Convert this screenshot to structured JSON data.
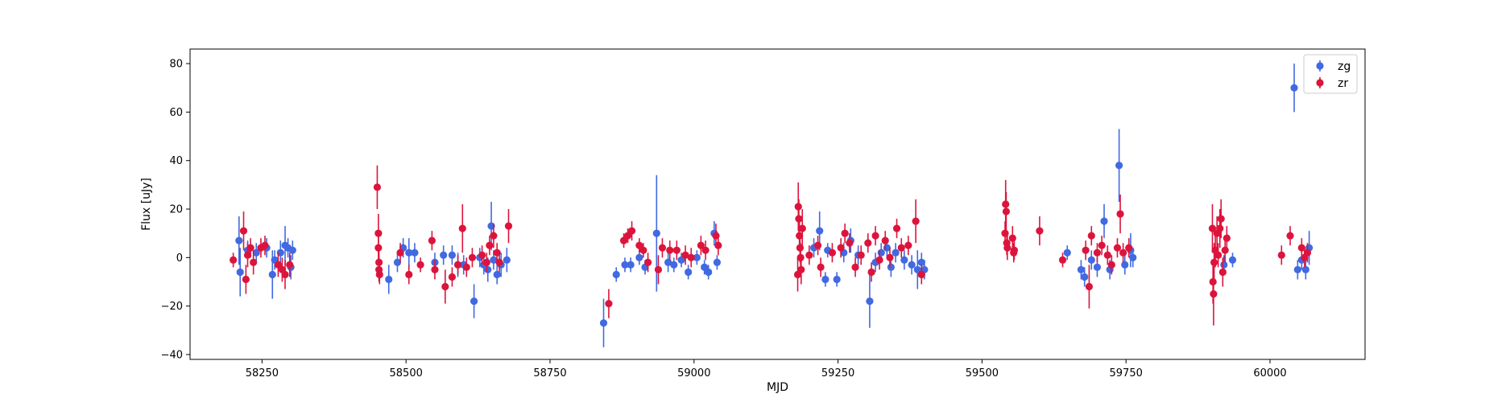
{
  "chart_data": {
    "type": "scatter",
    "xlabel": "MJD",
    "ylabel": "Flux [uJy]",
    "xlim": [
      58125,
      60165
    ],
    "ylim": [
      -42,
      86
    ],
    "x_ticks": [
      58250,
      58500,
      58750,
      59000,
      59250,
      59500,
      59750,
      60000
    ],
    "y_ticks": [
      -40,
      -20,
      0,
      20,
      40,
      60,
      80
    ],
    "legend": {
      "placement": "top-right",
      "entries": [
        "zg",
        "zr"
      ]
    },
    "series": [
      {
        "name": "zg",
        "color": "#4169e1",
        "points": [
          {
            "x": 58210,
            "y": 7,
            "err": 10
          },
          {
            "x": 58212,
            "y": -6,
            "err": 10
          },
          {
            "x": 58225,
            "y": 3,
            "err": 4
          },
          {
            "x": 58240,
            "y": 2,
            "err": 4
          },
          {
            "x": 58258,
            "y": 4,
            "err": 4
          },
          {
            "x": 58268,
            "y": -7,
            "err": 10
          },
          {
            "x": 58272,
            "y": -1,
            "err": 4
          },
          {
            "x": 58282,
            "y": 2,
            "err": 5
          },
          {
            "x": 58290,
            "y": 5,
            "err": 8
          },
          {
            "x": 58295,
            "y": 4,
            "err": 4
          },
          {
            "x": 58300,
            "y": -4,
            "err": 5
          },
          {
            "x": 58303,
            "y": 3,
            "err": 4
          },
          {
            "x": 58470,
            "y": -9,
            "err": 6
          },
          {
            "x": 58485,
            "y": -2,
            "err": 4
          },
          {
            "x": 58495,
            "y": 4,
            "err": 4
          },
          {
            "x": 58505,
            "y": 2,
            "err": 6
          },
          {
            "x": 58515,
            "y": 2,
            "err": 4
          },
          {
            "x": 58550,
            "y": -2,
            "err": 4
          },
          {
            "x": 58565,
            "y": 1,
            "err": 4
          },
          {
            "x": 58580,
            "y": 1,
            "err": 4
          },
          {
            "x": 58590,
            "y": -3,
            "err": 5
          },
          {
            "x": 58600,
            "y": -3,
            "err": 4
          },
          {
            "x": 58618,
            "y": -18,
            "err": 7
          },
          {
            "x": 58628,
            "y": 0,
            "err": 4
          },
          {
            "x": 58635,
            "y": -3,
            "err": 4
          },
          {
            "x": 58642,
            "y": -5,
            "err": 5
          },
          {
            "x": 58648,
            "y": 13,
            "err": 10
          },
          {
            "x": 58652,
            "y": -1,
            "err": 4
          },
          {
            "x": 58658,
            "y": -7,
            "err": 4
          },
          {
            "x": 58665,
            "y": -3,
            "err": 5
          },
          {
            "x": 58675,
            "y": -1,
            "err": 5
          },
          {
            "x": 58843,
            "y": -27,
            "err": 10
          },
          {
            "x": 58865,
            "y": -7,
            "err": 3
          },
          {
            "x": 58880,
            "y": -3,
            "err": 3
          },
          {
            "x": 58890,
            "y": -3,
            "err": 3
          },
          {
            "x": 58905,
            "y": 0,
            "err": 3
          },
          {
            "x": 58915,
            "y": -4,
            "err": 3
          },
          {
            "x": 58935,
            "y": 10,
            "err": 24
          },
          {
            "x": 58955,
            "y": -2,
            "err": 4
          },
          {
            "x": 58965,
            "y": -3,
            "err": 3
          },
          {
            "x": 58978,
            "y": -1,
            "err": 3
          },
          {
            "x": 58990,
            "y": -6,
            "err": 3
          },
          {
            "x": 59005,
            "y": 0,
            "err": 3
          },
          {
            "x": 59018,
            "y": -4,
            "err": 3
          },
          {
            "x": 59025,
            "y": -6,
            "err": 3
          },
          {
            "x": 59035,
            "y": 10,
            "err": 5
          },
          {
            "x": 59040,
            "y": -2,
            "err": 3
          },
          {
            "x": 59208,
            "y": 4,
            "err": 4
          },
          {
            "x": 59218,
            "y": 11,
            "err": 8
          },
          {
            "x": 59228,
            "y": -9,
            "err": 3
          },
          {
            "x": 59232,
            "y": 3,
            "err": 3
          },
          {
            "x": 59248,
            "y": -9,
            "err": 3
          },
          {
            "x": 59260,
            "y": 2,
            "err": 4
          },
          {
            "x": 59272,
            "y": 7,
            "err": 5
          },
          {
            "x": 59285,
            "y": 1,
            "err": 4
          },
          {
            "x": 59305,
            "y": -18,
            "err": 11
          },
          {
            "x": 59315,
            "y": -2,
            "err": 4
          },
          {
            "x": 59325,
            "y": 2,
            "err": 4
          },
          {
            "x": 59335,
            "y": 4,
            "err": 4
          },
          {
            "x": 59342,
            "y": -4,
            "err": 4
          },
          {
            "x": 59350,
            "y": 2,
            "err": 4
          },
          {
            "x": 59365,
            "y": -1,
            "err": 4
          },
          {
            "x": 59378,
            "y": -3,
            "err": 4
          },
          {
            "x": 59388,
            "y": -5,
            "err": 8
          },
          {
            "x": 59395,
            "y": -2,
            "err": 4
          },
          {
            "x": 59400,
            "y": -5,
            "err": 4
          },
          {
            "x": 59648,
            "y": 2,
            "err": 3
          },
          {
            "x": 59672,
            "y": -5,
            "err": 4
          },
          {
            "x": 59678,
            "y": -8,
            "err": 4
          },
          {
            "x": 59690,
            "y": -1,
            "err": 4
          },
          {
            "x": 59700,
            "y": -4,
            "err": 4
          },
          {
            "x": 59712,
            "y": 15,
            "err": 7
          },
          {
            "x": 59722,
            "y": -5,
            "err": 4
          },
          {
            "x": 59738,
            "y": 38,
            "err": 15
          },
          {
            "x": 59748,
            "y": -3,
            "err": 4
          },
          {
            "x": 59758,
            "y": 3,
            "err": 7
          },
          {
            "x": 59762,
            "y": 0,
            "err": 4
          },
          {
            "x": 59920,
            "y": -3,
            "err": 4
          },
          {
            "x": 59935,
            "y": -1,
            "err": 3
          },
          {
            "x": 60042,
            "y": 70,
            "err": 10
          },
          {
            "x": 60048,
            "y": -5,
            "err": 4
          },
          {
            "x": 60055,
            "y": -1,
            "err": 4
          },
          {
            "x": 60062,
            "y": -5,
            "err": 4
          },
          {
            "x": 60068,
            "y": 4,
            "err": 7
          }
        ]
      },
      {
        "name": "zr",
        "color": "#dc143c",
        "points": [
          {
            "x": 58200,
            "y": -1,
            "err": 3
          },
          {
            "x": 58218,
            "y": 11,
            "err": 8
          },
          {
            "x": 58222,
            "y": -9,
            "err": 6
          },
          {
            "x": 58225,
            "y": 1,
            "err": 5
          },
          {
            "x": 58230,
            "y": 4,
            "err": 4
          },
          {
            "x": 58235,
            "y": -2,
            "err": 5
          },
          {
            "x": 58248,
            "y": 4,
            "err": 4
          },
          {
            "x": 58255,
            "y": 5,
            "err": 4
          },
          {
            "x": 58278,
            "y": -3,
            "err": 5
          },
          {
            "x": 58285,
            "y": -5,
            "err": 5
          },
          {
            "x": 58290,
            "y": -7,
            "err": 6
          },
          {
            "x": 58298,
            "y": -3,
            "err": 5
          },
          {
            "x": 58450,
            "y": 29,
            "err": 9
          },
          {
            "x": 58452,
            "y": 10,
            "err": 8
          },
          {
            "x": 58452,
            "y": 4,
            "err": 5
          },
          {
            "x": 58453,
            "y": -2,
            "err": 5
          },
          {
            "x": 58453,
            "y": -5,
            "err": 5
          },
          {
            "x": 58454,
            "y": -7,
            "err": 4
          },
          {
            "x": 58490,
            "y": 2,
            "err": 4
          },
          {
            "x": 58505,
            "y": -7,
            "err": 4
          },
          {
            "x": 58525,
            "y": -3,
            "err": 3
          },
          {
            "x": 58545,
            "y": 7,
            "err": 4
          },
          {
            "x": 58550,
            "y": -5,
            "err": 4
          },
          {
            "x": 58568,
            "y": -12,
            "err": 7
          },
          {
            "x": 58580,
            "y": -8,
            "err": 4
          },
          {
            "x": 58590,
            "y": -3,
            "err": 4
          },
          {
            "x": 58598,
            "y": 12,
            "err": 10
          },
          {
            "x": 58605,
            "y": -4,
            "err": 4
          },
          {
            "x": 58615,
            "y": 0,
            "err": 4
          },
          {
            "x": 58632,
            "y": 1,
            "err": 4
          },
          {
            "x": 58640,
            "y": -2,
            "err": 4
          },
          {
            "x": 58645,
            "y": 5,
            "err": 4
          },
          {
            "x": 58652,
            "y": 9,
            "err": 5
          },
          {
            "x": 58658,
            "y": 2,
            "err": 4
          },
          {
            "x": 58662,
            "y": -2,
            "err": 4
          },
          {
            "x": 58678,
            "y": 13,
            "err": 7
          },
          {
            "x": 58852,
            "y": -19,
            "err": 6
          },
          {
            "x": 58878,
            "y": 7,
            "err": 3
          },
          {
            "x": 58885,
            "y": 9,
            "err": 3
          },
          {
            "x": 58892,
            "y": 11,
            "err": 4
          },
          {
            "x": 58905,
            "y": 5,
            "err": 3
          },
          {
            "x": 58912,
            "y": 3,
            "err": 3
          },
          {
            "x": 58920,
            "y": -2,
            "err": 4
          },
          {
            "x": 58938,
            "y": -5,
            "err": 6
          },
          {
            "x": 58945,
            "y": 4,
            "err": 4
          },
          {
            "x": 58958,
            "y": 3,
            "err": 4
          },
          {
            "x": 58970,
            "y": 3,
            "err": 4
          },
          {
            "x": 58985,
            "y": 1,
            "err": 4
          },
          {
            "x": 58995,
            "y": 0,
            "err": 4
          },
          {
            "x": 59012,
            "y": 5,
            "err": 4
          },
          {
            "x": 59020,
            "y": 3,
            "err": 4
          },
          {
            "x": 59038,
            "y": 9,
            "err": 5
          },
          {
            "x": 59042,
            "y": 5,
            "err": 4
          },
          {
            "x": 59180,
            "y": -7,
            "err": 7
          },
          {
            "x": 59181,
            "y": 21,
            "err": 10
          },
          {
            "x": 59182,
            "y": 16,
            "err": 8
          },
          {
            "x": 59183,
            "y": 9,
            "err": 6
          },
          {
            "x": 59184,
            "y": 4,
            "err": 6
          },
          {
            "x": 59185,
            "y": 0,
            "err": 6
          },
          {
            "x": 59186,
            "y": -5,
            "err": 6
          },
          {
            "x": 59188,
            "y": 12,
            "err": 8
          },
          {
            "x": 59200,
            "y": 1,
            "err": 4
          },
          {
            "x": 59215,
            "y": 5,
            "err": 4
          },
          {
            "x": 59220,
            "y": -4,
            "err": 4
          },
          {
            "x": 59240,
            "y": 2,
            "err": 4
          },
          {
            "x": 59255,
            "y": 4,
            "err": 4
          },
          {
            "x": 59262,
            "y": 10,
            "err": 4
          },
          {
            "x": 59270,
            "y": 6,
            "err": 4
          },
          {
            "x": 59280,
            "y": -4,
            "err": 4
          },
          {
            "x": 59290,
            "y": 1,
            "err": 4
          },
          {
            "x": 59302,
            "y": 6,
            "err": 4
          },
          {
            "x": 59308,
            "y": -6,
            "err": 4
          },
          {
            "x": 59315,
            "y": 9,
            "err": 4
          },
          {
            "x": 59322,
            "y": -1,
            "err": 4
          },
          {
            "x": 59332,
            "y": 7,
            "err": 4
          },
          {
            "x": 59340,
            "y": 0,
            "err": 4
          },
          {
            "x": 59352,
            "y": 12,
            "err": 4
          },
          {
            "x": 59360,
            "y": 4,
            "err": 4
          },
          {
            "x": 59372,
            "y": 5,
            "err": 4
          },
          {
            "x": 59385,
            "y": 15,
            "err": 9
          },
          {
            "x": 59395,
            "y": -7,
            "err": 4
          },
          {
            "x": 59540,
            "y": 10,
            "err": 5
          },
          {
            "x": 59541,
            "y": 22,
            "err": 10
          },
          {
            "x": 59542,
            "y": 19,
            "err": 8
          },
          {
            "x": 59543,
            "y": 6,
            "err": 5
          },
          {
            "x": 59544,
            "y": 4,
            "err": 5
          },
          {
            "x": 59553,
            "y": 8,
            "err": 5
          },
          {
            "x": 59555,
            "y": 2,
            "err": 4
          },
          {
            "x": 59556,
            "y": 3,
            "err": 4
          },
          {
            "x": 59600,
            "y": 11,
            "err": 6
          },
          {
            "x": 59640,
            "y": -1,
            "err": 3
          },
          {
            "x": 59680,
            "y": 3,
            "err": 4
          },
          {
            "x": 59686,
            "y": -12,
            "err": 9
          },
          {
            "x": 59690,
            "y": 9,
            "err": 4
          },
          {
            "x": 59700,
            "y": 2,
            "err": 4
          },
          {
            "x": 59708,
            "y": 5,
            "err": 4
          },
          {
            "x": 59718,
            "y": 1,
            "err": 4
          },
          {
            "x": 59725,
            "y": -3,
            "err": 4
          },
          {
            "x": 59735,
            "y": 4,
            "err": 4
          },
          {
            "x": 59740,
            "y": 18,
            "err": 8
          },
          {
            "x": 59745,
            "y": 2,
            "err": 4
          },
          {
            "x": 59755,
            "y": 4,
            "err": 4
          },
          {
            "x": 59900,
            "y": 12,
            "err": 10
          },
          {
            "x": 59901,
            "y": -10,
            "err": 9
          },
          {
            "x": 59902,
            "y": -15,
            "err": 13
          },
          {
            "x": 59903,
            "y": -2,
            "err": 8
          },
          {
            "x": 59905,
            "y": 3,
            "err": 7
          },
          {
            "x": 59908,
            "y": 10,
            "err": 7
          },
          {
            "x": 59910,
            "y": 1,
            "err": 5
          },
          {
            "x": 59913,
            "y": 12,
            "err": 8
          },
          {
            "x": 59915,
            "y": 16,
            "err": 8
          },
          {
            "x": 59918,
            "y": -6,
            "err": 6
          },
          {
            "x": 59922,
            "y": 3,
            "err": 5
          },
          {
            "x": 59925,
            "y": 8,
            "err": 5
          },
          {
            "x": 60020,
            "y": 1,
            "err": 4
          },
          {
            "x": 60035,
            "y": 9,
            "err": 4
          },
          {
            "x": 60055,
            "y": 4,
            "err": 4
          },
          {
            "x": 60060,
            "y": 0,
            "err": 4
          },
          {
            "x": 60065,
            "y": 2,
            "err": 4
          }
        ]
      }
    ]
  }
}
